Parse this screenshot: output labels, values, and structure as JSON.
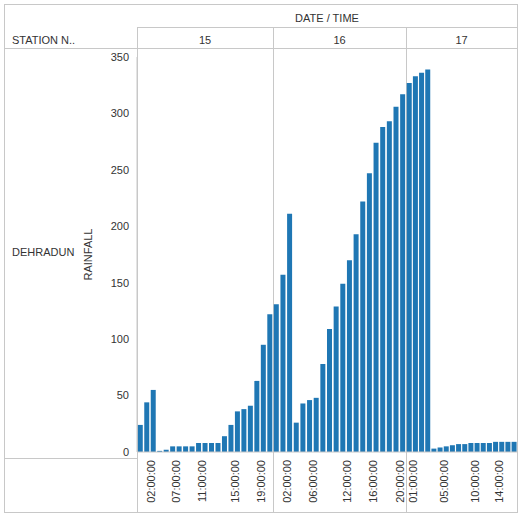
{
  "chart_data": {
    "type": "bar",
    "column_header": "DATE / TIME",
    "row_header": "STATION N..",
    "row_label": "DEHRADUN",
    "y_label": "RAINFALL",
    "ylim": [
      0,
      350
    ],
    "yticks": [
      0,
      50,
      100,
      150,
      200,
      250,
      300,
      350
    ],
    "grid": false,
    "color": "#1f77b4",
    "panels": [
      {
        "label": "15",
        "categories": [
          null,
          "02:00:00",
          null,
          null,
          null,
          "07:00:00",
          null,
          null,
          null,
          "11:00:00",
          null,
          null,
          null,
          null,
          "15:00:00",
          null,
          null,
          null,
          "19:00:00",
          null,
          null
        ],
        "values": [
          24,
          44,
          55,
          1,
          2,
          5,
          5,
          5,
          5,
          8,
          8,
          8,
          8,
          14,
          24,
          36,
          38,
          41,
          63,
          95,
          122
        ]
      },
      {
        "label": "16",
        "categories": [
          null,
          "02:00:00",
          null,
          null,
          null,
          "06:00:00",
          null,
          null,
          null,
          null,
          "12:00:00",
          null,
          null,
          null,
          "16:00:00",
          null,
          null,
          null,
          "20:00:00",
          null
        ],
        "values": [
          131,
          157,
          211,
          26,
          43,
          46,
          48,
          78,
          109,
          129,
          149,
          170,
          193,
          222,
          247,
          274,
          288,
          293,
          306,
          317
        ]
      },
      {
        "label": "17",
        "categories": [
          "01:00:00",
          null,
          null,
          null,
          null,
          "05:00:00",
          null,
          null,
          null,
          null,
          "10:00:00",
          null,
          null,
          null,
          "14:00:00",
          null,
          null,
          null
        ],
        "values": [
          327,
          333,
          336,
          339,
          3,
          4,
          5,
          6,
          7,
          7,
          8,
          8,
          8,
          8,
          9,
          9,
          9,
          9
        ]
      }
    ]
  }
}
